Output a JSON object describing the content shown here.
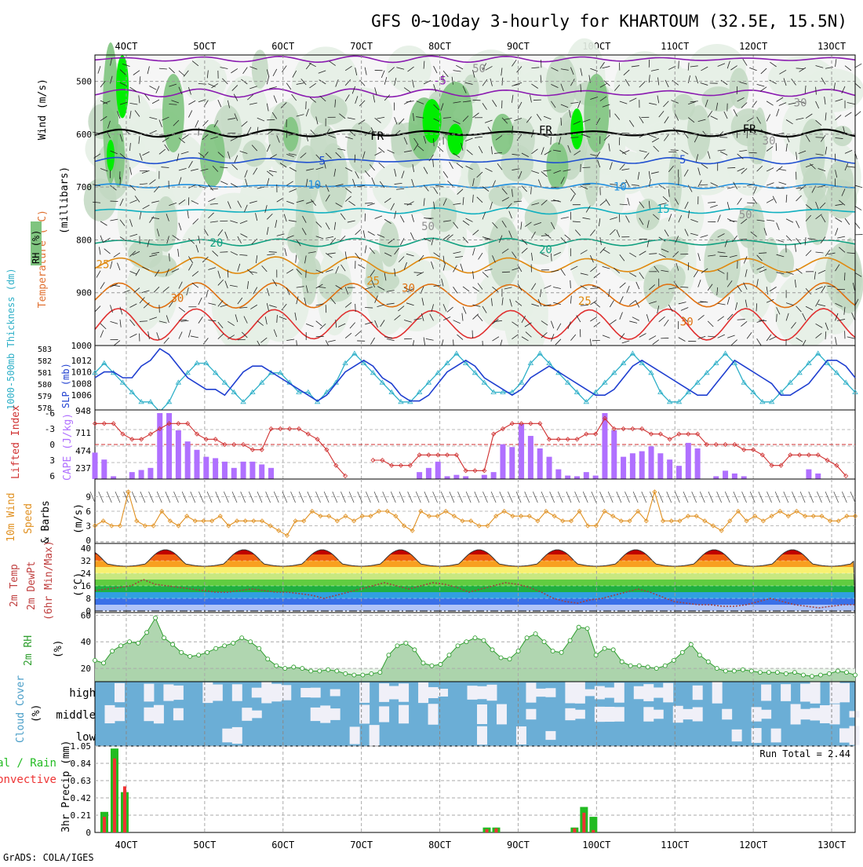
{
  "title": "GFS 0~10day 3-hourly for KHARTOUM (32.5E, 15.5N)",
  "credit": "GrADS: COLA/IGES",
  "colors": {
    "rh_light": "#e6f0e6",
    "rh_mid": "#c2d8c2",
    "rh_dark": "#7fc47f",
    "rh_bright": "#00ee00",
    "cloud_blue": "#6baed6",
    "cloud_white": "#f0f0f8",
    "slp": "#1f3fd0",
    "thick": "#2fb0c8",
    "li": "#d03030",
    "cape": "#b070ff",
    "wind": "#e09020",
    "rain_total": "#22bb22",
    "rain_conv": "#ee3333",
    "rh2m": "#2e9e2e"
  },
  "chart_data": {
    "type": "meteogram",
    "x_ticks": [
      "4OCT",
      "5OCT",
      "6OCT",
      "7OCT",
      "8OCT",
      "9OCT",
      "10OCT",
      "11OCT",
      "12OCT",
      "13OCT"
    ],
    "x_range_days": [
      3.6,
      13.3
    ],
    "upper_air": {
      "y_axis_label": "(millibars)",
      "side_labels": [
        "Wind (m/s)",
        "Temperature (°C)",
        "RH (%)"
      ],
      "y_ticks": [
        500,
        600,
        700,
        800,
        900,
        1000
      ],
      "y_range": [
        450,
        1000
      ],
      "isotherm_labels": [
        {
          "text": "-5",
          "day": 8.0,
          "p": 498,
          "color": "#8a1ab0"
        },
        {
          "text": "FR",
          "day": 7.2,
          "p": 603,
          "color": "#000000"
        },
        {
          "text": "FR",
          "day": 9.35,
          "p": 592,
          "color": "#000000"
        },
        {
          "text": "FR",
          "day": 11.95,
          "p": 590,
          "color": "#000000"
        },
        {
          "text": "5",
          "day": 6.5,
          "p": 650,
          "color": "#2050d0"
        },
        {
          "text": "5",
          "day": 11.1,
          "p": 648,
          "color": "#2050d0"
        },
        {
          "text": "10",
          "day": 6.4,
          "p": 695,
          "color": "#1f8fe0"
        },
        {
          "text": "10",
          "day": 10.3,
          "p": 699,
          "color": "#1f8fe0"
        },
        {
          "text": "15",
          "day": 10.85,
          "p": 741,
          "color": "#10b0c0"
        },
        {
          "text": "20",
          "day": 5.15,
          "p": 805,
          "color": "#10a080"
        },
        {
          "text": "20",
          "day": 9.35,
          "p": 818,
          "color": "#10a080"
        },
        {
          "text": "25",
          "day": 3.7,
          "p": 846,
          "color": "#e08a10"
        },
        {
          "text": "25",
          "day": 7.15,
          "p": 877,
          "color": "#e08a10"
        },
        {
          "text": "25",
          "day": 9.85,
          "p": 915,
          "color": "#e08a10"
        },
        {
          "text": "30",
          "day": 4.65,
          "p": 910,
          "color": "#e07010"
        },
        {
          "text": "30",
          "day": 7.6,
          "p": 891,
          "color": "#e07010"
        },
        {
          "text": "30",
          "day": 11.15,
          "p": 955,
          "color": "#e07010"
        },
        {
          "text": "50",
          "day": 8.5,
          "p": 475,
          "color": "#909090"
        },
        {
          "text": "30",
          "day": 12.6,
          "p": 540,
          "color": "#909090"
        },
        {
          "text": "30",
          "day": 12.2,
          "p": 612,
          "color": "#909090"
        },
        {
          "text": "50",
          "day": 7.85,
          "p": 774,
          "color": "#909090"
        },
        {
          "text": "50",
          "day": 11.9,
          "p": 752,
          "color": "#909090"
        }
      ]
    },
    "slp_thickness": {
      "left_label": "1000-500mb Thickness (dm)",
      "right_label": "SLP (mb)",
      "thick_ticks": [
        "583",
        "582",
        "581",
        "580",
        "579",
        "578"
      ],
      "slp_ticks": [
        "1012",
        "1010",
        "1008",
        "1006"
      ],
      "slp_range": [
        1004,
        1014
      ],
      "slp_values": [
        1009,
        1010,
        1010,
        1009,
        1009,
        1011,
        1012,
        1014,
        1013,
        1011,
        1009,
        1008,
        1007,
        1007,
        1006,
        1008,
        1010,
        1011,
        1011,
        1010,
        1009,
        1008,
        1007,
        1006,
        1005,
        1006,
        1008,
        1010,
        1011,
        1012,
        1011,
        1009,
        1008,
        1006,
        1005,
        1005,
        1006,
        1008,
        1010,
        1011,
        1012,
        1011,
        1009,
        1008,
        1007,
        1006,
        1007,
        1009,
        1010,
        1011,
        1010,
        1009,
        1008,
        1007,
        1006,
        1006,
        1007,
        1009,
        1011,
        1012,
        1011,
        1010,
        1009,
        1008,
        1007,
        1006,
        1006,
        1008,
        1010,
        1012,
        1011,
        1010,
        1009,
        1008,
        1006,
        1006,
        1007,
        1008,
        1010,
        1012,
        1012,
        1011,
        1009
      ],
      "thick_values": [
        581,
        582,
        581,
        580,
        579,
        578,
        578,
        577,
        578,
        580,
        581,
        582,
        582,
        581,
        580,
        579,
        578,
        579,
        580,
        581,
        581,
        580,
        579,
        579,
        578,
        579,
        580,
        582,
        583,
        582,
        581,
        580,
        579,
        578,
        578,
        579,
        580,
        581,
        582,
        583,
        582,
        581,
        580,
        579,
        579,
        579,
        580,
        582,
        583,
        582,
        581,
        580,
        579,
        578,
        579,
        580,
        581,
        582,
        583,
        582,
        581,
        579,
        578,
        578,
        579,
        580,
        581,
        582,
        583,
        582,
        580,
        579,
        578,
        578,
        579,
        580,
        581,
        582,
        583,
        582,
        581,
        580,
        579
      ],
      "thick_range": [
        577.5,
        583.5
      ]
    },
    "cape_li": {
      "left_label": "Lifted Index",
      "right_label": "CAPE (J/kg)",
      "li_ticks": [
        "-6",
        "-3",
        "0",
        "3",
        "6"
      ],
      "cape_ticks": [
        "948",
        "711",
        "474",
        "237"
      ],
      "cape_range": [
        0,
        948
      ],
      "li_range": [
        -6,
        6
      ],
      "cape_values": [
        380,
        280,
        40,
        0,
        100,
        130,
        160,
        948,
        948,
        700,
        540,
        420,
        320,
        300,
        250,
        160,
        250,
        250,
        210,
        160,
        0,
        0,
        0,
        0,
        0,
        0,
        0,
        0,
        0,
        0,
        0,
        0,
        0,
        0,
        0,
        100,
        160,
        250,
        40,
        60,
        40,
        0,
        60,
        100,
        500,
        460,
        790,
        620,
        440,
        320,
        140,
        50,
        40,
        100,
        50,
        948,
        700,
        320,
        370,
        400,
        470,
        370,
        280,
        190,
        520,
        440,
        0,
        40,
        120,
        80,
        40,
        0,
        0,
        0,
        0,
        0,
        0,
        140,
        80,
        0,
        0,
        0,
        0
      ],
      "li_values": [
        -4,
        -4,
        -4,
        -2,
        -1,
        -1,
        -2,
        -3,
        -4,
        -4,
        -4,
        -2,
        -1,
        -1,
        0,
        0,
        0,
        1,
        1,
        -3,
        -3,
        -3,
        -3,
        -2,
        -1,
        1,
        4,
        6,
        null,
        null,
        3,
        3,
        4,
        4,
        4,
        2,
        2,
        2,
        2,
        2,
        5,
        5,
        5,
        -2,
        -3,
        -4,
        -4,
        -4,
        -4,
        -1,
        -1,
        -1,
        -1,
        -2,
        -2,
        -5,
        -3,
        -3,
        -3,
        -3,
        -2,
        -2,
        -1,
        -2,
        -2,
        -2,
        0,
        0,
        0,
        0,
        1,
        1,
        2,
        4,
        4,
        2,
        2,
        2,
        2,
        3,
        4,
        6,
        null
      ]
    },
    "wind10m": {
      "label": "10m Wind Speed & Barbs (m/s)",
      "y_ticks": [
        "9",
        "6",
        "3",
        "0"
      ],
      "y_range": [
        0,
        12
      ],
      "values": [
        3,
        4,
        3,
        3,
        10,
        4,
        3,
        3,
        6,
        4,
        3,
        5,
        4,
        4,
        4,
        5,
        3,
        4,
        4,
        4,
        4,
        3,
        2,
        1,
        4,
        4,
        6,
        5,
        5,
        4,
        5,
        4,
        5,
        5,
        6,
        6,
        5,
        3,
        2,
        6,
        5,
        5,
        6,
        5,
        4,
        4,
        3,
        3,
        5,
        6,
        5,
        5,
        5,
        4,
        6,
        5,
        4,
        4,
        6,
        3,
        3,
        6,
        5,
        4,
        4,
        6,
        4,
        10,
        4,
        4,
        4,
        5,
        5,
        4,
        3,
        2,
        4,
        6,
        4,
        5,
        4,
        5,
        6,
        5,
        6,
        5,
        5,
        5,
        4,
        4,
        5,
        5
      ]
    },
    "temp2m": {
      "label": "2m Temp 2m DewPt (6hr Min/Max) (°C)",
      "y_ticks": [
        "40",
        "32",
        "24",
        "16",
        "8",
        "0"
      ],
      "y_range": [
        0,
        40
      ],
      "max_values": [
        37,
        39,
        37,
        35,
        39,
        40,
        37,
        35,
        38,
        40,
        37,
        35,
        38,
        40,
        37,
        35,
        38,
        40,
        37,
        35,
        38,
        40,
        37,
        35,
        38,
        40,
        37,
        35,
        38,
        40,
        37,
        35,
        38,
        40,
        37,
        35,
        38,
        40,
        37,
        35
      ],
      "dewpt_values": [
        13,
        14,
        15,
        16,
        20,
        17,
        16,
        15,
        14,
        13,
        12,
        12,
        13,
        14,
        13,
        12,
        12,
        11,
        10,
        8,
        10,
        12,
        14,
        16,
        18,
        16,
        14,
        16,
        18,
        17,
        15,
        12,
        14,
        16,
        18,
        17,
        15,
        12,
        8,
        6,
        5,
        7,
        8,
        10,
        12,
        14,
        12,
        9,
        6,
        5,
        4,
        4,
        3,
        3,
        4,
        6,
        8,
        6,
        4,
        3,
        2,
        3,
        4,
        4
      ]
    },
    "rh2m": {
      "label": "2m RH (%)",
      "y_ticks": [
        "60",
        "40",
        "20"
      ],
      "y_range": [
        10,
        62
      ],
      "values": [
        26,
        24,
        33,
        37,
        40,
        39,
        47,
        58,
        43,
        38,
        32,
        29,
        30,
        32,
        35,
        37,
        39,
        43,
        40,
        35,
        27,
        22,
        20,
        21,
        20,
        18,
        18,
        19,
        18,
        16,
        15,
        15,
        16,
        17,
        30,
        37,
        39,
        34,
        24,
        22,
        23,
        30,
        37,
        40,
        43,
        41,
        34,
        28,
        27,
        33,
        43,
        46,
        40,
        33,
        32,
        41,
        51,
        50,
        30,
        35,
        34,
        25,
        22,
        22,
        21,
        20,
        22,
        26,
        32,
        38,
        30,
        25,
        20,
        18,
        18,
        19,
        18,
        17,
        17,
        17,
        16,
        17,
        15,
        14,
        15,
        16,
        18,
        17,
        15
      ]
    },
    "cloud": {
      "label": "Cloud Cover (%)",
      "levels": [
        "high",
        "middle",
        "low"
      ]
    },
    "precip": {
      "label": "3hr Precip (mm)",
      "side_labels": [
        "Total / Rain",
        "Convective"
      ],
      "y_ticks": [
        "1.05",
        "0.84",
        "0.63",
        "0.42",
        "0.21",
        "0"
      ],
      "y_range": [
        0,
        1.05
      ],
      "run_total": "Run Total = 2.44",
      "bars": [
        {
          "day": 3.72,
          "total": 0.25,
          "conv": 0.19
        },
        {
          "day": 3.85,
          "total": 1.02,
          "conv": 0.9
        },
        {
          "day": 3.98,
          "total": 0.49,
          "conv": 0.56
        },
        {
          "day": 8.6,
          "total": 0.06,
          "conv": 0.04
        },
        {
          "day": 8.72,
          "total": 0.06,
          "conv": 0.05
        },
        {
          "day": 9.72,
          "total": 0.06,
          "conv": 0.05
        },
        {
          "day": 9.84,
          "total": 0.31,
          "conv": 0.24
        },
        {
          "day": 9.96,
          "total": 0.19,
          "conv": 0.03
        }
      ]
    }
  }
}
